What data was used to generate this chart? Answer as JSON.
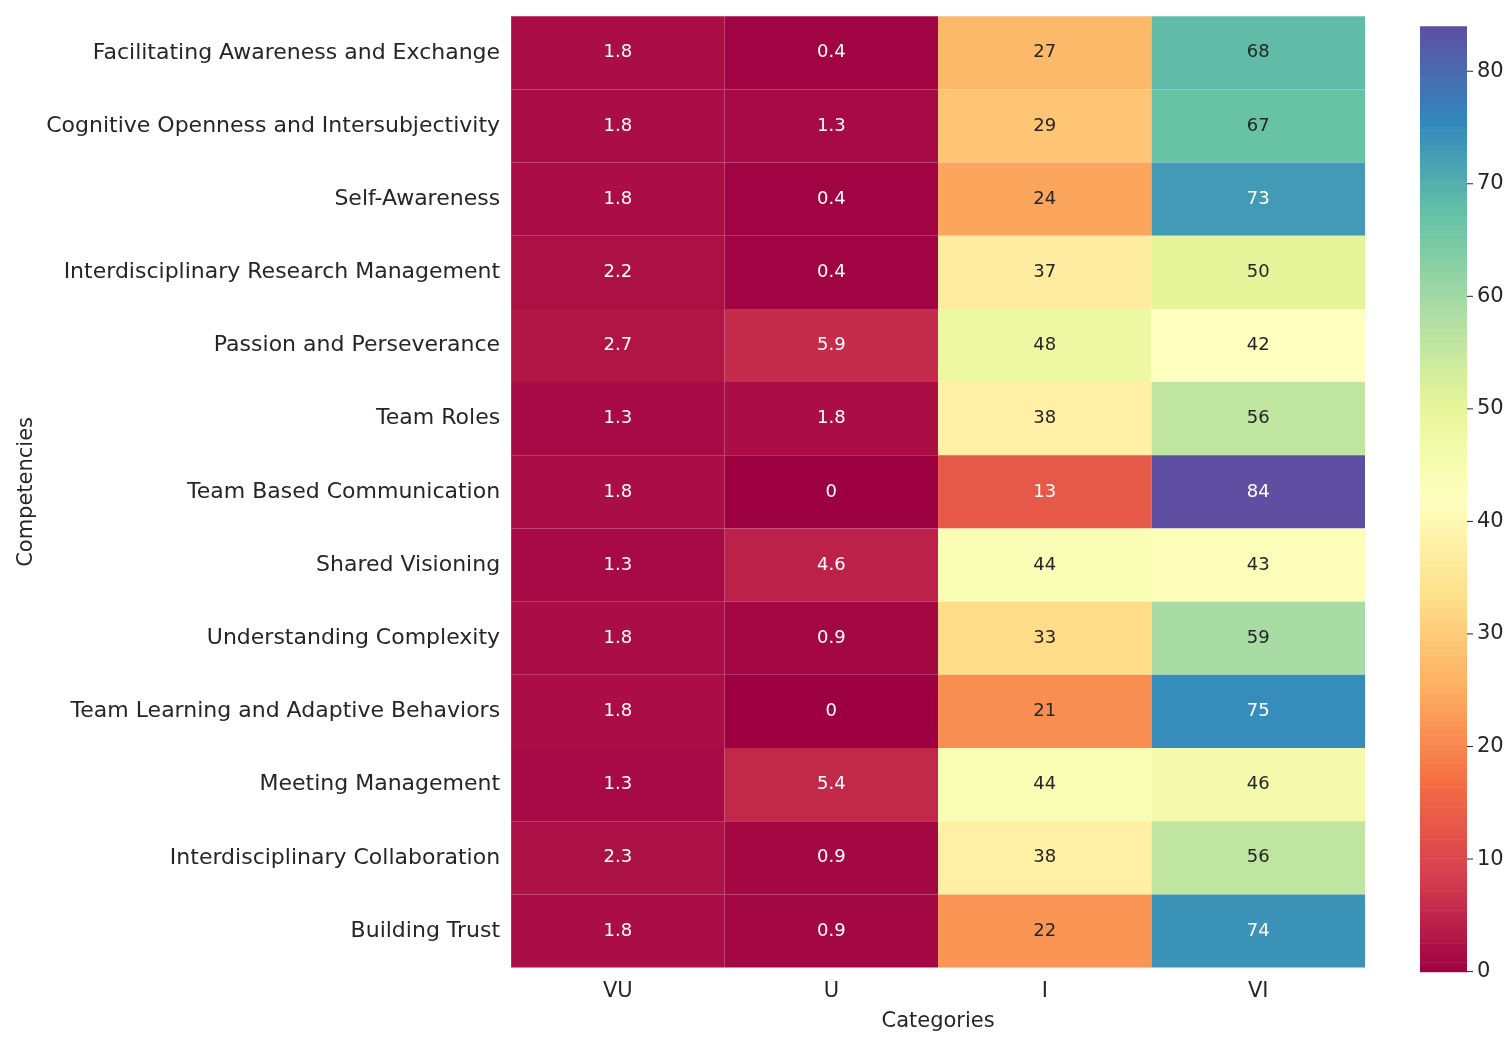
{
  "chart_data": {
    "type": "heatmap",
    "xlabel": "Categories",
    "ylabel": "Competencies",
    "categories": [
      "VU",
      "U",
      "I",
      "VI"
    ],
    "y_categories": [
      "Facilitating Awareness and Exchange",
      "Cognitive Openness and Intersubjectivity",
      "Self-Awareness",
      "Interdisciplinary Research Management",
      "Passion and Perseverance",
      "Team Roles",
      "Team Based Communication",
      "Shared Visioning",
      "Understanding Complexity",
      "Team Learning and Adaptive Behaviors",
      "Meeting Management",
      "Interdisciplinary Collaboration",
      "Building Trust"
    ],
    "cells": [
      [
        1.8,
        0.4,
        27,
        68
      ],
      [
        1.8,
        1.3,
        29,
        67
      ],
      [
        1.8,
        0.4,
        24,
        73
      ],
      [
        2.2,
        0.4,
        37,
        50
      ],
      [
        2.7,
        5.9,
        48,
        42
      ],
      [
        1.3,
        1.8,
        38,
        56
      ],
      [
        1.8,
        0,
        13,
        84
      ],
      [
        1.3,
        4.6,
        44,
        43
      ],
      [
        1.8,
        0.9,
        33,
        59
      ],
      [
        1.8,
        0,
        21,
        75
      ],
      [
        1.3,
        5.4,
        44,
        46
      ],
      [
        2.3,
        0.9,
        38,
        56
      ],
      [
        1.8,
        0.9,
        22,
        74
      ]
    ],
    "clim": [
      0,
      84
    ],
    "cticks": [
      0,
      10,
      20,
      30,
      40,
      50,
      60,
      70,
      80
    ],
    "data_labels": true
  }
}
